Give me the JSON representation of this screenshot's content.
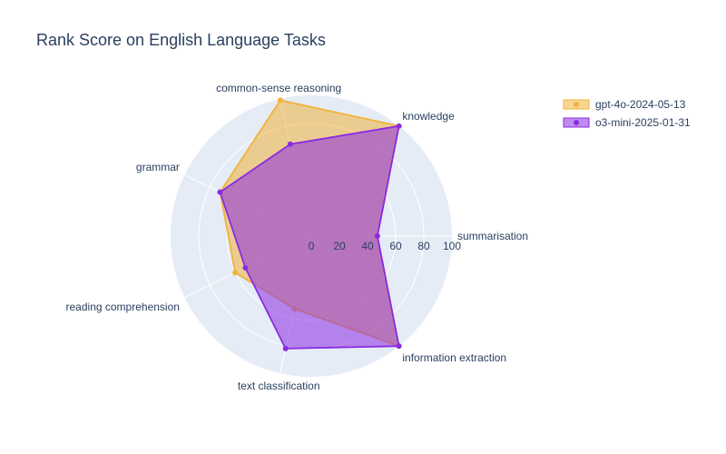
{
  "chart_data": {
    "type": "radar",
    "title": "Rank Score on English Language Tasks",
    "axes": [
      "summarisation",
      "knowledge",
      "common-sense reasoning",
      "grammar",
      "reading comprehension",
      "text classification",
      "information extraction"
    ],
    "radial_range": [
      0,
      100
    ],
    "radial_ticks": [
      "0",
      "20",
      "40",
      "60",
      "80",
      "100"
    ],
    "legend_position": "top-right",
    "background_color": "#e5ecf6",
    "series": [
      {
        "name": "gpt-4o-2024-05-13",
        "color": "#f0b33c",
        "fill_color": "rgba(240,179,60,0.55)",
        "values": [
          47,
          100,
          99,
          72,
          60,
          53,
          100
        ]
      },
      {
        "name": "o3-mini-2025-01-31",
        "color": "#8a2be2",
        "fill_color": "rgba(138,43,226,0.55)",
        "values": [
          47,
          100,
          67,
          72,
          52,
          82,
          100
        ]
      }
    ]
  }
}
